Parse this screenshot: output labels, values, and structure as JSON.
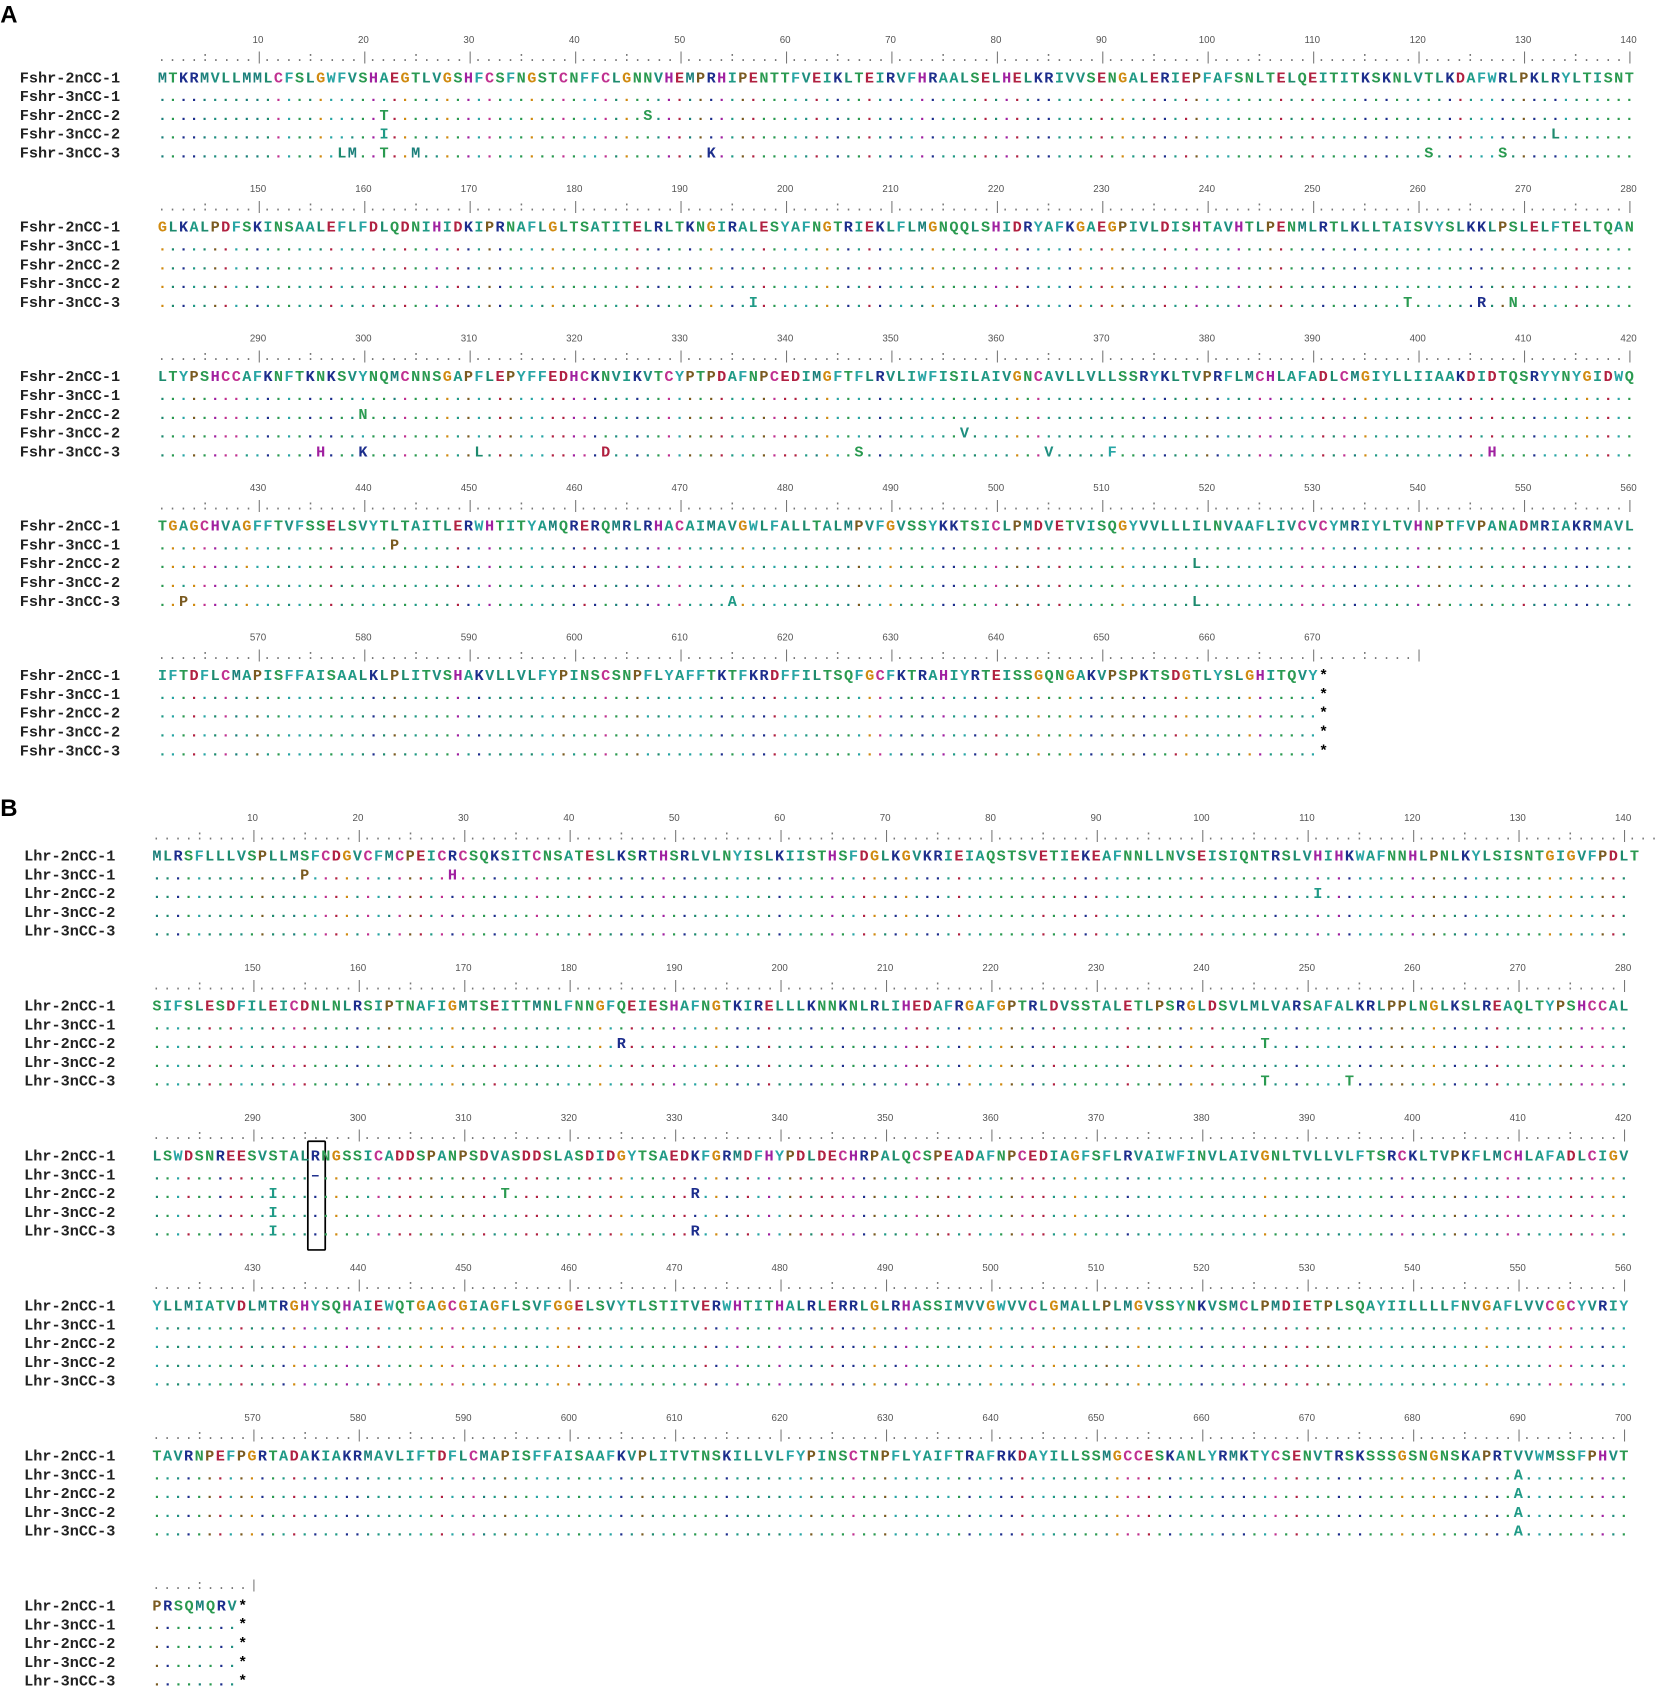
{
  "ruler_unit": "....:....|",
  "residue_colors": {
    "A": "#1f9a86",
    "V": "#1f8f80",
    "L": "#1d8a6e",
    "I": "#1f9a86",
    "M": "#1a7f7a",
    "F": "#27a5a5",
    "W": "#27a5a5",
    "Y": "#27a5a5",
    "K": "#1c2d8c",
    "R": "#1c2d8c",
    "D": "#b02040",
    "E": "#b02040",
    "H": "#a020a0",
    "G": "#d08a10",
    "P": "#7a5a20",
    "C": "#c03090",
    "S": "#2a9a50",
    "T": "#2a9a50",
    "N": "#2a9a50",
    "Q": "#2a9a50",
    "*": "#000000"
  },
  "panels": [
    {
      "label": "A",
      "names": [
        "Fshr-2nCC-1",
        "Fshr-3nCC-1",
        "Fshr-2nCC-2",
        "Fshr-3nCC-2",
        "Fshr-3nCC-3"
      ],
      "blocks": [
        {
          "ticks": [
            10,
            20,
            30,
            40,
            50,
            60,
            70,
            80,
            90,
            100,
            110,
            120,
            130,
            140
          ],
          "rows": [
            "MTKRMVLLMMLCFSLGWFVSHAEGTLVGSHFCSFNGSTCNFFCLGNNVHEMPRHIPENTTFVEIKLTEIRVFHRAALSELHELKRIVVSENGALERIEPFAFSNLTELQEITITKSKNLVTLKDAFWRLPKLRYLTISNT",
            "............................................................................................................................................",
            ".....................T........................S.............................................................................................",
            ".....................I..............................................................................................................L.......",
            ".................LM..T..M...........................K...................................................................S......S............"
          ]
        },
        {
          "ticks": [
            150,
            160,
            170,
            180,
            190,
            200,
            210,
            220,
            230,
            240,
            250,
            260,
            270,
            280
          ],
          "rows": [
            "GLKALPDFSKINSAALEFLFDLQDNIHIDKIPRNAFLGLTSATITELRLTKNGIRALESYAFNGTRIEKLFLMGNQQLSHIDRYAFKGAEGPIVLDISHTAVHTLPENMLRTLKLLTAISVYSLKKLPSLELFTELTQAN",
            "............................................................................................................................................",
            "............................................................................................................................................",
            "............................................................................................................................................",
            "........................................................I.............................................................T......R..N..........."
          ]
        },
        {
          "ticks": [
            290,
            300,
            310,
            320,
            330,
            340,
            350,
            360,
            370,
            380,
            390,
            400,
            410,
            420
          ],
          "rows": [
            "LTYPSHCCAFKNFTKNKSVYNQMCNNSGAPFLEPYFFEDHCKNVIKVTCYPTPDAFNPCEDIMGFTFLRVLIWFISILAIVGNCAVLLVLLSSRYKLTVPRFLMCHLAFADLCMGIYLLIIAAKDIDTQSRYYNYGIDWQ",
            "............................................................................................................................................",
            "...................N........................................................................................................................",
            "............................................................................V...............................................................",
            "...............H...K..........L...........D.......................S.................V.....F...................................H............."
          ]
        },
        {
          "ticks": [
            430,
            440,
            450,
            460,
            470,
            480,
            490,
            500,
            510,
            520,
            530,
            540,
            550,
            560
          ],
          "rows": [
            "TGAGCHVAGFFTVFSSELSVYTLTAITLERWHTITYAMQRERQMRLRHACAIMAVGWLFALLTALMPVFGVSSYKKTSICLPMDVETVISQGYVVLLLILNVAAFLIVCVCYMRIYLTVHNPTFVPANADMRIAKRMAVL",
            "......................P.....................................................................................................................",
            "..................................................................................................L.........................................",
            "............................................................................................................................................",
            "..P...................................................A...........................................L........................................."
          ]
        },
        {
          "ticks": [
            570,
            580,
            590,
            600,
            610,
            620,
            630,
            640,
            650,
            660,
            670
          ],
          "rows": [
            "IFTDFLCMAPISFFAISAALKLPLITVSHAKVLLVLFYPINSCSNPFLYAFFTKTFKRDFFILTSQFGCFKTRAHIYRTEISSGQNGAKVPSPKTSDGTLYSLGHITQVY*",
            "..............................................................................................................*",
            "..............................................................................................................*",
            "..............................................................................................................*",
            "..............................................................................................................*"
          ]
        }
      ]
    },
    {
      "label": "B",
      "names": [
        "Lhr-2nCC-1",
        "Lhr-3nCC-1",
        "Lhr-2nCC-2",
        "Lhr-3nCC-2",
        "Lhr-3nCC-3"
      ],
      "blocks": [
        {
          "ticks": [
            10,
            20,
            30,
            40,
            50,
            60,
            70,
            80,
            90,
            100,
            110,
            120,
            130,
            140
          ],
          "rows": [
            "MLRSFLLLVSPLLMSFCDGVCFMCPEICRCSQKSITCNSATESLKSRTHSRLVLNYISLKIISTHSFDGLKGVKRIEIAQSTSVETIEKEAFNNLLNVSEISIQNTRSLVHIHKWAFNNHLPNLKYLSISNTGIGVFPDLT",
            "..............P.............H...............................................................................................................",
            "..............................................................................................................I.............................",
            "............................................................................................................................................",
            "............................................................................................................................................"
          ]
        },
        {
          "ticks": [
            150,
            160,
            170,
            180,
            190,
            200,
            210,
            220,
            230,
            240,
            250,
            260,
            270,
            280
          ],
          "rows": [
            "SIFSLESDFILEICDNLNLRSIPTNAFIGMTSEITTMNLFNNGFQEIESHAFNGTKIRELLLKNNKNLRLIHEDAFRGAFGPTRLDVSSTALETLPSRGLDSVLMLVARSAFALKRLPPLNGLKSLREAQLTYPSHCCAL",
            "............................................................................................................................................",
            "............................................R............................................................T..................................",
            "............................................................................................................................................",
            ".........................................................................................................T.......T.........................."
          ]
        },
        {
          "ticks": [
            290,
            300,
            310,
            320,
            330,
            340,
            350,
            360,
            370,
            380,
            390,
            400,
            410,
            420
          ],
          "rows": [
            "LSWDSNREESVSTALRNGSSICADDSPANPSDVASDDSLASDIDGYTSAEDKFGRMDFHYPDLDECHRPALQCSPEADAFNPCEDIAGFSFLRVAIWFINVLAIVGNLTVLLVLFTSRCKLTVPKFLMCHLAFADLCIGV",
            "...............–............................................................................................................................",
            "...........I.....................T.................R........................................................................................",
            "...........I................................................................................................................................",
            "...........I.......................................R........................................................................................"
          ]
        },
        {
          "ticks": [
            430,
            440,
            450,
            460,
            470,
            480,
            490,
            500,
            510,
            520,
            530,
            540,
            550,
            560
          ],
          "rows": [
            "YLLMIATVDLMTRGHYSQHAIEWQTGAGCGIAGFLSVFGGELSVYTLSTITVERWHTITHALRLERRLGLRHASSIMVVGWVVCLGMALLPLMGVSSYNKVSMCLPMDIETPLSQAYIILLLLFNVGAFLVVCGCYVRIY",
            "............................................................................................................................................",
            "............................................................................................................................................",
            "............................................................................................................................................",
            "............................................................................................................................................"
          ]
        },
        {
          "ticks": [
            570,
            580,
            590,
            600,
            610,
            620,
            630,
            640,
            650,
            660,
            670,
            680,
            690,
            700
          ],
          "rows": [
            "TAVRNPEFPGRTADAKIAKRMAVLIFTDFLCMAPISFFAISAAFKVPLITVTNSKILLVLFYPINSCTNPFLYAIFTRAFRKDAYILLSSMGCCESKANLYRMKTYCSENVTRSKSSSGSNGNSKAPRTVVWMSSFPHVT",
            ".................................................................................................................................A..........",
            ".................................................................................................................................A..........",
            ".................................................................................................................................A..........",
            ".................................................................................................................................A.........."
          ]
        },
        {
          "ticks": [],
          "rows": [
            "PRSQMQRV*",
            "........*",
            "........*",
            "........*",
            "........*"
          ]
        }
      ]
    }
  ]
}
